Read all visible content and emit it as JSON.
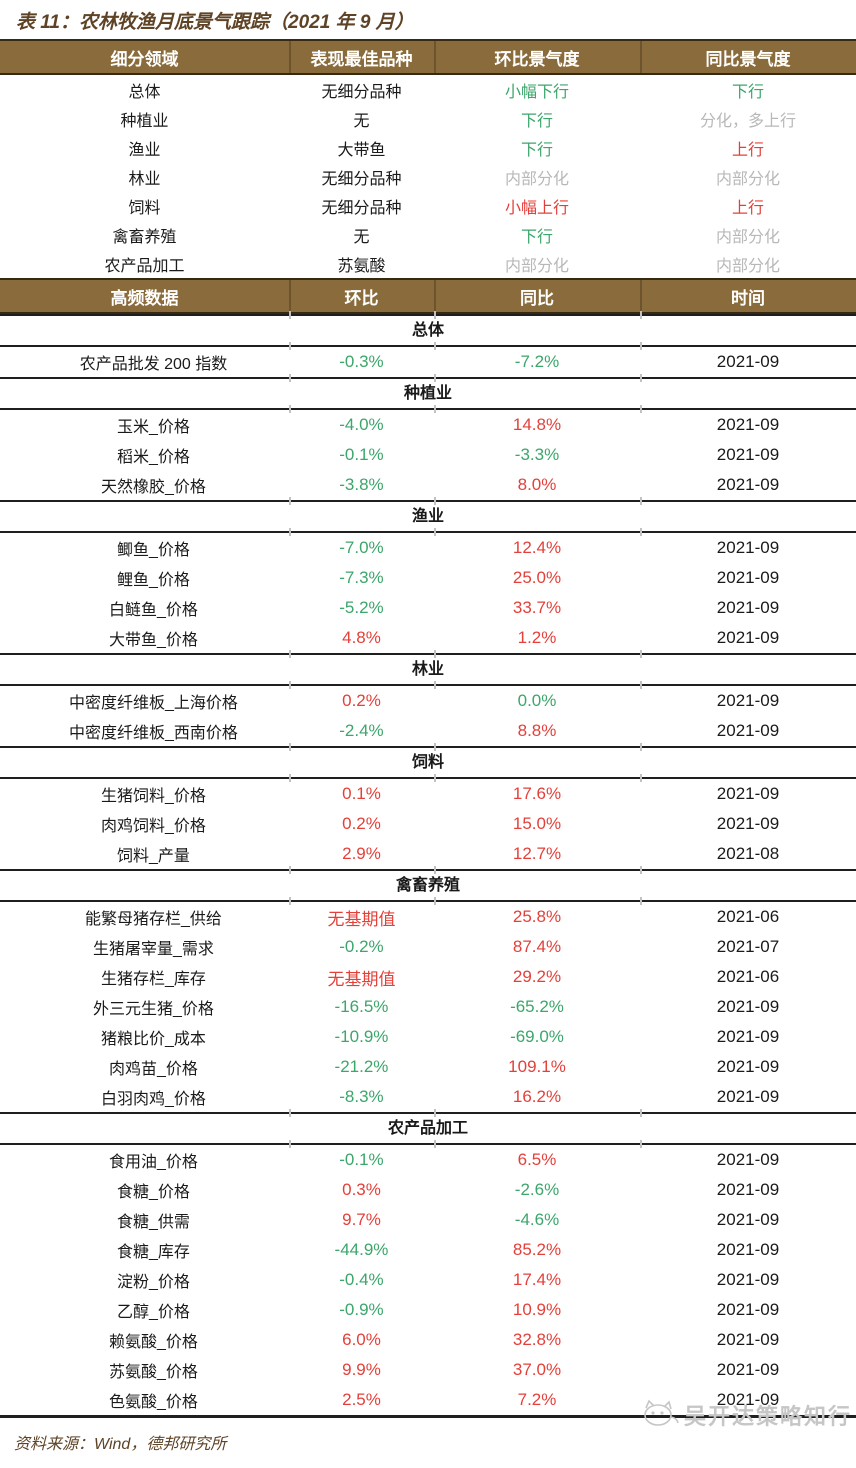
{
  "page": {
    "title": "表 11：农林牧渔月底景气跟踪（2021 年 9 月）",
    "footer": "资料来源：Wind，德邦研究所",
    "watermark": "吴开达策略知行"
  },
  "colors": {
    "header_bg": "#8a6c3c",
    "header_text": "#ffffff",
    "title_text": "#5f4326",
    "up_red": "#e4403a",
    "down_green": "#3ca66b",
    "neutral_gray": "#b8b8b8",
    "rule_black": "#1f1f1f"
  },
  "summary_table": {
    "headers": [
      "细分领域",
      "表现最佳品种",
      "环比景气度",
      "同比景气度"
    ],
    "rows": [
      {
        "field": "总体",
        "best": "无细分品种",
        "mom": {
          "text": "小幅下行",
          "color": "green"
        },
        "yoy": {
          "text": "下行",
          "color": "green"
        }
      },
      {
        "field": "种植业",
        "best": "无",
        "mom": {
          "text": "下行",
          "color": "green"
        },
        "yoy": {
          "text": "分化，多上行",
          "color": "gray"
        }
      },
      {
        "field": "渔业",
        "best": "大带鱼",
        "mom": {
          "text": "下行",
          "color": "green"
        },
        "yoy": {
          "text": "上行",
          "color": "red"
        }
      },
      {
        "field": "林业",
        "best": "无细分品种",
        "mom": {
          "text": "内部分化",
          "color": "gray"
        },
        "yoy": {
          "text": "内部分化",
          "color": "gray"
        }
      },
      {
        "field": "饲料",
        "best": "无细分品种",
        "mom": {
          "text": "小幅上行",
          "color": "red"
        },
        "yoy": {
          "text": "上行",
          "color": "red"
        }
      },
      {
        "field": "禽畜养殖",
        "best": "无",
        "mom": {
          "text": "下行",
          "color": "green"
        },
        "yoy": {
          "text": "内部分化",
          "color": "gray"
        }
      },
      {
        "field": "农产品加工",
        "best": "苏氨酸",
        "mom": {
          "text": "内部分化",
          "color": "gray"
        },
        "yoy": {
          "text": "内部分化",
          "color": "gray"
        }
      }
    ]
  },
  "detail_table": {
    "headers": [
      "高频数据",
      "环比",
      "同比",
      "时间"
    ],
    "sections": [
      {
        "name": "总体",
        "rows": [
          {
            "indicator": "农产品批发 200 指数",
            "mom": {
              "text": "-0.3%",
              "color": "green"
            },
            "yoy": {
              "text": "-7.2%",
              "color": "green"
            },
            "date": "2021-09"
          }
        ]
      },
      {
        "name": "种植业",
        "rows": [
          {
            "indicator": "玉米_价格",
            "mom": {
              "text": "-4.0%",
              "color": "green"
            },
            "yoy": {
              "text": "14.8%",
              "color": "red"
            },
            "date": "2021-09"
          },
          {
            "indicator": "稻米_价格",
            "mom": {
              "text": "-0.1%",
              "color": "green"
            },
            "yoy": {
              "text": "-3.3%",
              "color": "green"
            },
            "date": "2021-09"
          },
          {
            "indicator": "天然橡胶_价格",
            "mom": {
              "text": "-3.8%",
              "color": "green"
            },
            "yoy": {
              "text": "8.0%",
              "color": "red"
            },
            "date": "2021-09"
          }
        ]
      },
      {
        "name": "渔业",
        "rows": [
          {
            "indicator": "鲫鱼_价格",
            "mom": {
              "text": "-7.0%",
              "color": "green"
            },
            "yoy": {
              "text": "12.4%",
              "color": "red"
            },
            "date": "2021-09"
          },
          {
            "indicator": "鲤鱼_价格",
            "mom": {
              "text": "-7.3%",
              "color": "green"
            },
            "yoy": {
              "text": "25.0%",
              "color": "red"
            },
            "date": "2021-09"
          },
          {
            "indicator": "白鲢鱼_价格",
            "mom": {
              "text": "-5.2%",
              "color": "green"
            },
            "yoy": {
              "text": "33.7%",
              "color": "red"
            },
            "date": "2021-09"
          },
          {
            "indicator": "大带鱼_价格",
            "mom": {
              "text": "4.8%",
              "color": "red"
            },
            "yoy": {
              "text": "1.2%",
              "color": "red"
            },
            "date": "2021-09"
          }
        ]
      },
      {
        "name": "林业",
        "rows": [
          {
            "indicator": "中密度纤维板_上海价格",
            "mom": {
              "text": "0.2%",
              "color": "red"
            },
            "yoy": {
              "text": "0.0%",
              "color": "green"
            },
            "date": "2021-09"
          },
          {
            "indicator": "中密度纤维板_西南价格",
            "mom": {
              "text": "-2.4%",
              "color": "green"
            },
            "yoy": {
              "text": "8.8%",
              "color": "red"
            },
            "date": "2021-09"
          }
        ]
      },
      {
        "name": "饲料",
        "rows": [
          {
            "indicator": "生猪饲料_价格",
            "mom": {
              "text": "0.1%",
              "color": "red"
            },
            "yoy": {
              "text": "17.6%",
              "color": "red"
            },
            "date": "2021-09"
          },
          {
            "indicator": "肉鸡饲料_价格",
            "mom": {
              "text": "0.2%",
              "color": "red"
            },
            "yoy": {
              "text": "15.0%",
              "color": "red"
            },
            "date": "2021-09"
          },
          {
            "indicator": "饲料_产量",
            "mom": {
              "text": "2.9%",
              "color": "red"
            },
            "yoy": {
              "text": "12.7%",
              "color": "red"
            },
            "date": "2021-08"
          }
        ]
      },
      {
        "name": "禽畜养殖",
        "rows": [
          {
            "indicator": "能繁母猪存栏_供给",
            "mom": {
              "text": "无基期值",
              "color": "red"
            },
            "yoy": {
              "text": "25.8%",
              "color": "red"
            },
            "date": "2021-06"
          },
          {
            "indicator": "生猪屠宰量_需求",
            "mom": {
              "text": "-0.2%",
              "color": "green"
            },
            "yoy": {
              "text": "87.4%",
              "color": "red"
            },
            "date": "2021-07"
          },
          {
            "indicator": "生猪存栏_库存",
            "mom": {
              "text": "无基期值",
              "color": "red"
            },
            "yoy": {
              "text": "29.2%",
              "color": "red"
            },
            "date": "2021-06"
          },
          {
            "indicator": "外三元生猪_价格",
            "mom": {
              "text": "-16.5%",
              "color": "green"
            },
            "yoy": {
              "text": "-65.2%",
              "color": "green"
            },
            "date": "2021-09"
          },
          {
            "indicator": "猪粮比价_成本",
            "mom": {
              "text": "-10.9%",
              "color": "green"
            },
            "yoy": {
              "text": "-69.0%",
              "color": "green"
            },
            "date": "2021-09"
          },
          {
            "indicator": "肉鸡苗_价格",
            "mom": {
              "text": "-21.2%",
              "color": "green"
            },
            "yoy": {
              "text": "109.1%",
              "color": "red"
            },
            "date": "2021-09"
          },
          {
            "indicator": "白羽肉鸡_价格",
            "mom": {
              "text": "-8.3%",
              "color": "green"
            },
            "yoy": {
              "text": "16.2%",
              "color": "red"
            },
            "date": "2021-09"
          }
        ]
      },
      {
        "name": "农产品加工",
        "rows": [
          {
            "indicator": "食用油_价格",
            "mom": {
              "text": "-0.1%",
              "color": "green"
            },
            "yoy": {
              "text": "6.5%",
              "color": "red"
            },
            "date": "2021-09"
          },
          {
            "indicator": "食糖_价格",
            "mom": {
              "text": "0.3%",
              "color": "red"
            },
            "yoy": {
              "text": "-2.6%",
              "color": "green"
            },
            "date": "2021-09"
          },
          {
            "indicator": "食糖_供需",
            "mom": {
              "text": "9.7%",
              "color": "red"
            },
            "yoy": {
              "text": "-4.6%",
              "color": "green"
            },
            "date": "2021-09"
          },
          {
            "indicator": "食糖_库存",
            "mom": {
              "text": "-44.9%",
              "color": "green"
            },
            "yoy": {
              "text": "85.2%",
              "color": "red"
            },
            "date": "2021-09"
          },
          {
            "indicator": "淀粉_价格",
            "mom": {
              "text": "-0.4%",
              "color": "green"
            },
            "yoy": {
              "text": "17.4%",
              "color": "red"
            },
            "date": "2021-09"
          },
          {
            "indicator": "乙醇_价格",
            "mom": {
              "text": "-0.9%",
              "color": "green"
            },
            "yoy": {
              "text": "10.9%",
              "color": "red"
            },
            "date": "2021-09"
          },
          {
            "indicator": "赖氨酸_价格",
            "mom": {
              "text": "6.0%",
              "color": "red"
            },
            "yoy": {
              "text": "32.8%",
              "color": "red"
            },
            "date": "2021-09"
          },
          {
            "indicator": "苏氨酸_价格",
            "mom": {
              "text": "9.9%",
              "color": "red"
            },
            "yoy": {
              "text": "37.0%",
              "color": "red"
            },
            "date": "2021-09"
          },
          {
            "indicator": "色氨酸_价格",
            "mom": {
              "text": "2.5%",
              "color": "red"
            },
            "yoy": {
              "text": "7.2%",
              "color": "red"
            },
            "date": "2021-09"
          }
        ]
      }
    ]
  }
}
